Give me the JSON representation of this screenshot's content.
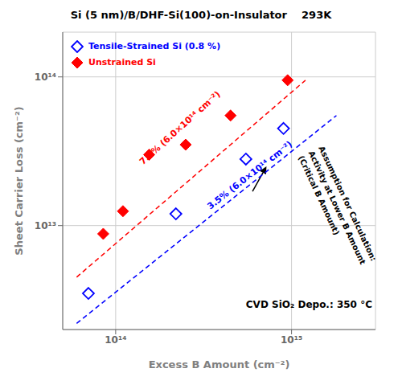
{
  "chart_data": {
    "type": "scatter",
    "title": "Si (5 nm)/B/DHF-Si(100)-on-Insulator    293K",
    "xlabel": "Excess B Amount (cm⁻²)",
    "ylabel": "Sheet Carrier Loss (cm⁻²)",
    "log": true,
    "grid": true,
    "legend": "upper left",
    "xlim": [
      50000000000000.0,
      3000000000000000.0
    ],
    "ylim": [
      2000000000000.0,
      200000000000000.0
    ],
    "xticks": [
      {
        "value": 100000000000000.0,
        "label": "10¹⁴"
      },
      {
        "value": 1000000000000000.0,
        "label": "10¹⁵"
      }
    ],
    "yticks": [
      {
        "value": 10000000000000.0,
        "label": "10¹³"
      },
      {
        "value": 100000000000000.0,
        "label": "10¹⁴"
      }
    ],
    "series": [
      {
        "name": "Tensile-Strained Si (0.8 %)",
        "type": "scatter",
        "marker": "open_diamond",
        "color": "#0000FF",
        "x": [
          70000000000000.0,
          220000000000000.0,
          550000000000000.0,
          900000000000000.0
        ],
        "values": [
          3500000000000.0,
          12000000000000.0,
          28000000000000.0,
          45000000000000.0
        ]
      },
      {
        "name": "Unstrained Si",
        "type": "scatter",
        "marker": "diamond",
        "color": "#FF0000",
        "x": [
          85000000000000.0,
          110000000000000.0,
          155000000000000.0,
          250000000000000.0,
          450000000000000.0,
          950000000000000.0
        ],
        "values": [
          8800000000000.0,
          12500000000000.0,
          30000000000000.0,
          35000000000000.0,
          55000000000000.0,
          95000000000000.0
        ]
      },
      {
        "type": "line",
        "line_style": "dashed",
        "color": "#FF0000",
        "x": [
          60000000000000.0,
          1200000000000000.0
        ],
        "values": [
          4500000000000.0,
          95000000000000.0
        ]
      },
      {
        "type": "line",
        "line_style": "dashed",
        "color": "#0000FF",
        "x": [
          60000000000000.0,
          1800000000000000.0
        ],
        "values": [
          2200000000000.0,
          55000000000000.0
        ]
      }
    ],
    "annotations": [
      {
        "text": "7.0% (6.0×10¹⁴ cm⁻²)",
        "x": 145000000000000.0,
        "y": 25000000000000.0,
        "color": "#FF0000"
      },
      {
        "text": "3.5% (6.0×10¹⁴ cm⁻²)",
        "x": 350000000000000.0,
        "y": 12500000000000.0,
        "color": "#0000FF"
      },
      {
        "text": "CVD SiO₂ Depo.: 350 °C",
        "x": 550000000000000.0,
        "y": 2700000000000.0,
        "color": "#000000"
      },
      {
        "text": "Assumption for Calculation:\nActivity at Lower B Amount\n(Critical B Amount)",
        "x": 1550000000000000.0,
        "y": 35000000000000.0,
        "color": "#000000"
      }
    ],
    "arrows": [
      {
        "from": [
          600000000000000.0,
          17000000000000.0
        ],
        "to": [
          720000000000000.0,
          25000000000000.0
        ]
      }
    ]
  }
}
